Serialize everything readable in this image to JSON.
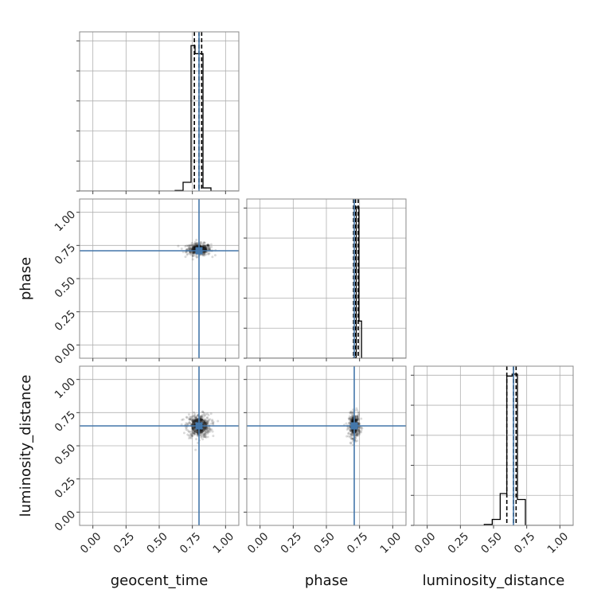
{
  "chart_data": {
    "type": "corner",
    "parameters": [
      "geocent_time",
      "phase",
      "luminosity_distance"
    ],
    "axis_labels": {
      "x": [
        "geocent_time",
        "phase",
        "luminosity_distance"
      ],
      "y": [
        "",
        "phase",
        "luminosity_distance"
      ]
    },
    "tick_labels": [
      "0.00",
      "0.25",
      "0.50",
      "0.75",
      "1.00"
    ],
    "tick_values": [
      0.0,
      0.25,
      0.5,
      0.75,
      1.0
    ],
    "xlim": [
      -0.1,
      1.1
    ],
    "ylim": [
      -0.1,
      1.1
    ],
    "grid": true,
    "truths": [
      0.8,
      0.71,
      0.65
    ],
    "truth_color": "#4477aa",
    "histograms": [
      {
        "parameter": "geocent_time",
        "bin_edges": [
          0.62,
          0.68,
          0.74,
          0.77,
          0.83,
          0.89
        ],
        "counts": [
          1.0,
          14.0,
          233.0,
          220.0,
          5.0
        ],
        "ymax": 255,
        "quantiles": [
          0.765,
          0.8,
          0.82
        ]
      },
      {
        "parameter": "phase",
        "bin_edges": [
          0.685,
          0.705,
          0.725,
          0.745,
          0.765,
          0.785
        ],
        "counts": [
          0.0,
          1.0,
          228.0,
          56.0,
          0.0
        ],
        "ymax": 240,
        "quantiles": [
          0.705,
          0.72,
          0.74
        ]
      },
      {
        "parameter": "luminosity_distance",
        "bin_edges": [
          0.43,
          0.49,
          0.55,
          0.6,
          0.64,
          0.68,
          0.74
        ],
        "counts": [
          1.0,
          6.0,
          32.0,
          150.0,
          152.0,
          26.0
        ],
        "ymax": 160,
        "quantiles": [
          0.6,
          0.65,
          0.67
        ]
      }
    ],
    "scatter_panels": [
      {
        "x_param": "geocent_time",
        "y_param": "phase",
        "center": [
          0.8,
          0.72
        ],
        "spread": [
          0.045,
          0.022
        ]
      },
      {
        "x_param": "geocent_time",
        "y_param": "luminosity_distance",
        "center": [
          0.8,
          0.65
        ],
        "spread": [
          0.045,
          0.045
        ]
      },
      {
        "x_param": "phase",
        "y_param": "luminosity_distance",
        "center": [
          0.71,
          0.65
        ],
        "spread": [
          0.02,
          0.045
        ]
      }
    ],
    "colors": {
      "histogram": "#000000",
      "quantile_line": "#000000",
      "samples": "#000000",
      "grid": "#b0b0b0",
      "frame": "#8a8a8a"
    }
  }
}
